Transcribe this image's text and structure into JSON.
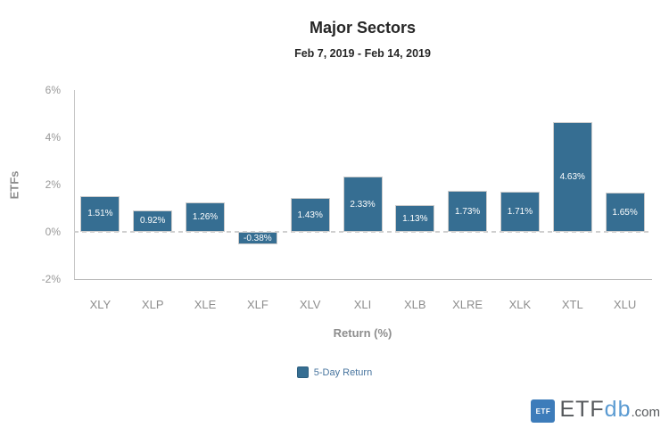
{
  "header": {
    "title": "Major Sectors",
    "subtitle": "Feb 7, 2019 - Feb 14, 2019"
  },
  "chart_data": {
    "type": "bar",
    "title": "Major Sectors",
    "subtitle": "Feb 7, 2019 - Feb 14, 2019",
    "categories": [
      "XLY",
      "XLP",
      "XLE",
      "XLF",
      "XLV",
      "XLI",
      "XLB",
      "XLRE",
      "XLK",
      "XTL",
      "XLU"
    ],
    "values": [
      1.51,
      0.92,
      1.26,
      -0.38,
      1.43,
      2.33,
      1.13,
      1.73,
      1.71,
      4.63,
      1.65
    ],
    "value_labels": [
      "1.51%",
      "0.92%",
      "1.26%",
      "-0.38%",
      "1.43%",
      "2.33%",
      "1.13%",
      "1.73%",
      "1.71%",
      "4.63%",
      "1.65%"
    ],
    "series_name": "5-Day Return",
    "xlabel": "Return (%)",
    "ylabel": "ETFs",
    "ylim": [
      -2,
      6
    ],
    "yticks": [
      "6%",
      "4%",
      "2%",
      "0%",
      "-2%"
    ],
    "ytick_values": [
      6,
      4,
      2,
      0,
      -2
    ],
    "zero_line": "dashed",
    "grid": false,
    "legend_position": "bottom",
    "bar_color": "#366e92"
  },
  "legend": {
    "items": [
      {
        "label": "5-Day Return",
        "color": "#366e92"
      }
    ]
  },
  "branding": {
    "logo_square_text": "ETF",
    "logo_etf": "ETF",
    "logo_db": "db",
    "logo_com": ".com"
  },
  "colors": {
    "bar": "#366e92",
    "bar_border": "#cccccc",
    "title_text": "#262626",
    "axis_text": "#8d8d8d",
    "tick_text": "#999999",
    "legend_text": "#47749e",
    "logo_blue": "#3d7cba",
    "background": "#ffffff"
  }
}
